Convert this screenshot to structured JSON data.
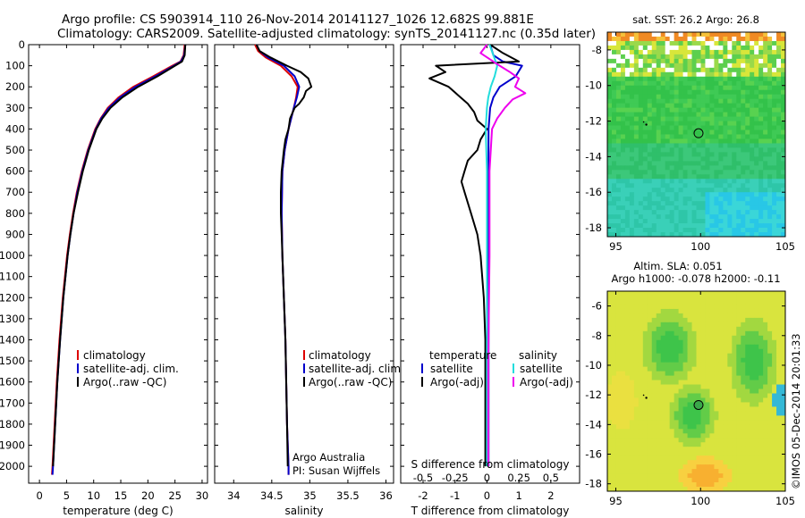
{
  "header": {
    "line1": "Argo profile: CS 5903914_110 26-Nov-2014 20141127_1026 12.682S 99.881E",
    "line2": "Climatology: CARS2009. Satellite-adjusted climatology: synTS_20141127.nc (0.35d later)"
  },
  "footer": {
    "owner": "Argo Australia",
    "pi": "PI: Susan Wijffels",
    "stamp": "©IMOS 05-Dec-2014 20:01:33"
  },
  "colors": {
    "climatology": "#dd0000",
    "satellite": "#0000cc",
    "argo": "#000000",
    "cyan": "#22dddd",
    "magenta": "#ee00ee"
  },
  "chart_data": [
    {
      "type": "line",
      "id": "temperature",
      "xlabel": "temperature (deg C)",
      "xlim": [
        -2,
        31
      ],
      "xticks": [
        "0",
        "5",
        "10",
        "15",
        "20",
        "25",
        "30"
      ],
      "xtick_values": [
        0,
        5,
        10,
        15,
        20,
        25,
        30
      ],
      "ylim": [
        0,
        2080
      ],
      "yticks": [
        "0",
        "100",
        "200",
        "300",
        "400",
        "500",
        "600",
        "700",
        "800",
        "900",
        "1000",
        "1100",
        "1200",
        "1300",
        "1400",
        "1500",
        "1600",
        "1700",
        "1800",
        "1900",
        "2000"
      ],
      "ytick_values": [
        0,
        100,
        200,
        300,
        400,
        500,
        600,
        700,
        800,
        900,
        1000,
        1100,
        1200,
        1300,
        1400,
        1500,
        1600,
        1700,
        1800,
        1900,
        2000
      ],
      "legend": [
        "climatology",
        "satellite-adj. clim.",
        "Argo(..raw -QC)"
      ],
      "series": [
        {
          "name": "climatology",
          "color": "#dd0000",
          "depth": [
            0,
            50,
            80,
            100,
            150,
            200,
            250,
            300,
            350,
            400,
            500,
            600,
            700,
            800,
            900,
            1000,
            1200,
            1400,
            1600,
            1800,
            2000,
            2040
          ],
          "values": [
            26.8,
            26.6,
            26.0,
            24.5,
            21.0,
            17.3,
            14.6,
            12.6,
            11.3,
            10.3,
            8.9,
            7.8,
            6.9,
            6.2,
            5.6,
            5.1,
            4.3,
            3.7,
            3.2,
            2.8,
            2.4,
            2.3
          ]
        },
        {
          "name": "satellite-adj. clim.",
          "color": "#0000cc",
          "depth": [
            0,
            50,
            80,
            100,
            150,
            200,
            250,
            300,
            350,
            400,
            500,
            600,
            700,
            800,
            900,
            1000,
            1200,
            1400,
            1600,
            1800,
            2000,
            2040
          ],
          "values": [
            26.9,
            26.7,
            26.1,
            24.8,
            21.4,
            17.7,
            14.9,
            12.8,
            11.4,
            10.4,
            9.0,
            7.9,
            7.0,
            6.3,
            5.7,
            5.2,
            4.4,
            3.8,
            3.3,
            2.9,
            2.5,
            2.4
          ]
        },
        {
          "name": "Argo(..raw -QC)",
          "color": "#000000",
          "depth": [
            0,
            50,
            80,
            100,
            150,
            200,
            250,
            300,
            350,
            400,
            500,
            600,
            700,
            800,
            900,
            1000,
            1200,
            1400,
            1600,
            1800,
            2000
          ],
          "values": [
            26.9,
            26.8,
            26.3,
            25.0,
            21.8,
            18.2,
            15.3,
            13.1,
            11.6,
            10.5,
            9.1,
            8.0,
            7.1,
            6.3,
            5.7,
            5.2,
            4.4,
            3.8,
            3.3,
            2.9,
            2.5
          ]
        }
      ]
    },
    {
      "type": "line",
      "id": "salinity",
      "xlabel": "salinity",
      "xlim": [
        33.75,
        36.1
      ],
      "xticks": [
        "34",
        "34.5",
        "35",
        "35.5",
        "36"
      ],
      "xtick_values": [
        34,
        34.5,
        35,
        35.5,
        36
      ],
      "ylim": [
        0,
        2080
      ],
      "legend": [
        "climatology",
        "satellite-adj. clim.",
        "Argo(..raw -QC)"
      ],
      "series": [
        {
          "name": "climatology",
          "color": "#dd0000",
          "depth": [
            0,
            30,
            60,
            100,
            150,
            200,
            250,
            300,
            400,
            500,
            600,
            800,
            1000,
            1200,
            1400,
            1600,
            1800,
            2000,
            2040
          ],
          "values": [
            34.28,
            34.32,
            34.42,
            34.62,
            34.76,
            34.84,
            34.82,
            34.79,
            34.72,
            34.67,
            34.64,
            34.63,
            34.64,
            34.66,
            34.68,
            34.69,
            34.7,
            34.72,
            34.72
          ]
        },
        {
          "name": "satellite-adj. clim.",
          "color": "#0000cc",
          "depth": [
            0,
            30,
            60,
            100,
            150,
            200,
            250,
            300,
            400,
            500,
            600,
            800,
            1000,
            1200,
            1400,
            1600,
            1800,
            2000,
            2040
          ],
          "values": [
            34.3,
            34.34,
            34.45,
            34.66,
            34.8,
            34.86,
            34.83,
            34.79,
            34.72,
            34.67,
            34.64,
            34.63,
            34.64,
            34.66,
            34.68,
            34.69,
            34.7,
            34.72,
            34.72
          ]
        },
        {
          "name": "Argo(..raw -QC)",
          "color": "#000000",
          "depth": [
            0,
            30,
            60,
            100,
            130,
            160,
            200,
            220,
            250,
            280,
            300,
            350,
            400,
            450,
            500,
            600,
            700,
            800,
            900,
            1000,
            1200,
            1400,
            1600,
            1800,
            2000
          ],
          "values": [
            34.3,
            34.34,
            34.48,
            34.7,
            34.88,
            34.98,
            35.02,
            34.95,
            34.92,
            34.86,
            34.8,
            34.74,
            34.72,
            34.68,
            34.66,
            34.63,
            34.62,
            34.62,
            34.63,
            34.64,
            34.66,
            34.68,
            34.69,
            34.7,
            34.71
          ]
        }
      ]
    },
    {
      "type": "line",
      "id": "differences",
      "xlabel": "T difference from climatology",
      "xlabel2": "S difference from climatology",
      "xlim": [
        -2.7,
        2.9
      ],
      "xticks": [
        "-2",
        "-1",
        "0",
        "1",
        "2"
      ],
      "xtick_values": [
        -2,
        -1,
        0,
        1,
        2
      ],
      "s_ticks": [
        "-0.5",
        "-0.25",
        "0",
        "0.25",
        "0.5"
      ],
      "s_tick_values": [
        -0.5,
        -0.25,
        0,
        0.25,
        0.5
      ],
      "ylim": [
        0,
        2080
      ],
      "legend_temperature_title": "temperature",
      "legend_salinity_title": "salinity",
      "legend": [
        "satellite",
        "Argo(-adj)",
        "satellite",
        "Argo(-adj)"
      ],
      "series": [
        {
          "name": "T satellite",
          "color": "#0000cc",
          "depth": [
            0,
            50,
            80,
            100,
            150,
            200,
            250,
            300,
            400,
            600,
            800,
            1000,
            1400,
            2000
          ],
          "values": [
            0.1,
            0.2,
            0.5,
            1.1,
            0.9,
            0.4,
            0.2,
            0.1,
            0.05,
            0.05,
            0.05,
            0.05,
            0.05,
            0.05
          ]
        },
        {
          "name": "T Argo(-adj)",
          "color": "#000000",
          "depth": [
            0,
            40,
            80,
            100,
            130,
            160,
            200,
            240,
            280,
            320,
            360,
            400,
            450,
            500,
            550,
            600,
            650,
            700,
            800,
            900,
            1000,
            1200,
            1400,
            1600,
            1800,
            2000
          ],
          "values": [
            0.1,
            0.5,
            1.0,
            -1.6,
            -1.3,
            -1.8,
            -1.2,
            -0.9,
            -0.6,
            -0.4,
            -0.3,
            0.0,
            -0.2,
            -0.3,
            -0.6,
            -0.7,
            -0.8,
            -0.7,
            -0.5,
            -0.3,
            -0.2,
            -0.1,
            -0.05,
            -0.05,
            -0.05,
            -0.05
          ]
        },
        {
          "name": "S satellite",
          "color": "#22dddd",
          "depth": [
            0,
            50,
            100,
            150,
            200,
            250,
            300,
            400,
            600,
            1000,
            1500,
            2000
          ],
          "values": [
            0.02,
            0.05,
            0.08,
            0.06,
            0.03,
            0.01,
            0.0,
            -0.01,
            0.0,
            0.0,
            0.0,
            0.0
          ]
        },
        {
          "name": "S Argo(-adj)",
          "color": "#ee00ee",
          "depth": [
            0,
            40,
            80,
            100,
            130,
            160,
            200,
            230,
            260,
            300,
            350,
            400,
            600,
            800,
            1000,
            1500,
            2000
          ],
          "values": [
            0.0,
            -0.05,
            0.05,
            0.1,
            0.18,
            0.25,
            0.22,
            0.3,
            0.2,
            0.14,
            0.08,
            0.04,
            0.02,
            0.02,
            0.02,
            0.01,
            0.01
          ]
        }
      ]
    },
    {
      "type": "heatmap",
      "id": "sst-map",
      "title": "sat. SST: 26.2 Argo: 26.8",
      "xlim": [
        94.5,
        105
      ],
      "ylim": [
        -18.5,
        -7
      ],
      "xticks": [
        "95",
        "100",
        "105"
      ],
      "xtick_values": [
        95,
        100,
        105
      ],
      "yticks": [
        "-8",
        "-10",
        "-12",
        "-14",
        "-16",
        "-18"
      ],
      "ytick_values": [
        -8,
        -10,
        -12,
        -14,
        -16,
        -18
      ],
      "float_position": [
        99.881,
        -12.682
      ],
      "track_point": [
        96.8,
        -12.2
      ]
    },
    {
      "type": "heatmap",
      "id": "sla-map",
      "title": "Altim. SLA: 0.051",
      "subtitle": "Argo h1000: -0.078 h2000: -0.11",
      "xlim": [
        94.5,
        105
      ],
      "ylim": [
        -18.5,
        -5
      ],
      "xticks": [
        "95",
        "100",
        "105"
      ],
      "xtick_values": [
        95,
        100,
        105
      ],
      "yticks": [
        "-6",
        "-8",
        "-10",
        "-12",
        "-14",
        "-16",
        "-18"
      ],
      "ytick_values": [
        -6,
        -8,
        -10,
        -12,
        -14,
        -16,
        -18
      ],
      "float_position": [
        99.881,
        -12.682
      ],
      "track_point": [
        96.8,
        -12.2
      ]
    }
  ]
}
